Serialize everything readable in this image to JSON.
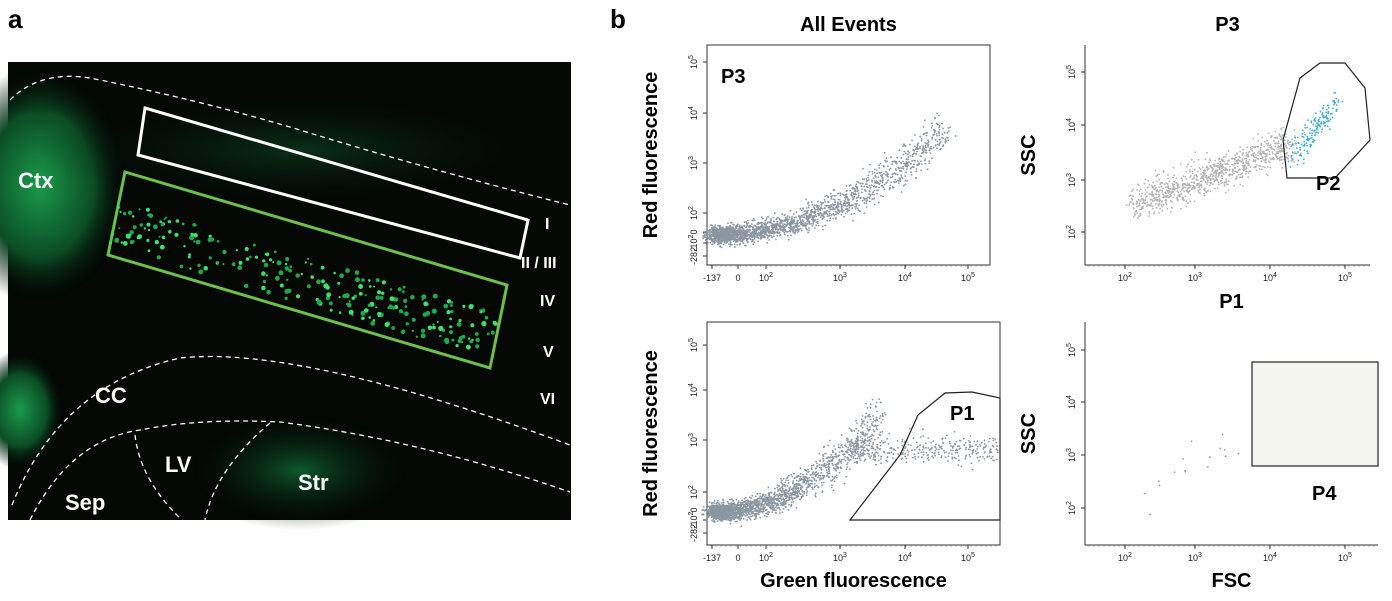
{
  "panels": [
    {
      "label": "a",
      "regions": [
        "Ctx",
        "CC",
        "LV",
        "Str",
        "Sep"
      ],
      "layers": [
        "I",
        "II / III",
        "IV",
        "V",
        "VI"
      ]
    },
    {
      "label": "b",
      "plots": [
        {
          "title": "All Events",
          "y_label": "Red fluorescence",
          "gates": [
            "P3"
          ],
          "y_ticks": [
            {
              "base": "10",
              "exp": "5"
            },
            {
              "base": "10",
              "exp": "4"
            },
            {
              "base": "10",
              "exp": "3"
            },
            {
              "base": "10",
              "exp": "2"
            },
            {
              "base": "0",
              "exp": ""
            },
            {
              "base": "-10",
              "exp": "2"
            },
            {
              "base": "-282",
              "exp": ""
            }
          ],
          "x_ticks": [
            {
              "base": "-137",
              "exp": ""
            },
            {
              "base": "0",
              "exp": ""
            },
            {
              "base": "10",
              "exp": "2"
            },
            {
              "base": "10",
              "exp": "3"
            },
            {
              "base": "10",
              "exp": "4"
            },
            {
              "base": "10",
              "exp": "5"
            }
          ]
        },
        {
          "title": "P3",
          "y_label": "SSC",
          "gates": [
            "P2"
          ],
          "y_ticks": [
            {
              "base": "10",
              "exp": "5"
            },
            {
              "base": "10",
              "exp": "4"
            },
            {
              "base": "10",
              "exp": "3"
            },
            {
              "base": "10",
              "exp": "2"
            }
          ],
          "x_ticks": [
            {
              "base": "10",
              "exp": "2"
            },
            {
              "base": "10",
              "exp": "3"
            },
            {
              "base": "10",
              "exp": "4"
            },
            {
              "base": "10",
              "exp": "5"
            }
          ]
        },
        {
          "y_label": "Red fluorescence",
          "x_label": "Green fluorescence",
          "gates": [
            "P1"
          ],
          "y_ticks": [
            {
              "base": "10",
              "exp": "5"
            },
            {
              "base": "10",
              "exp": "4"
            },
            {
              "base": "10",
              "exp": "3"
            },
            {
              "base": "10",
              "exp": "2"
            },
            {
              "base": "0",
              "exp": ""
            },
            {
              "base": "-10",
              "exp": "2"
            },
            {
              "base": "-282",
              "exp": ""
            }
          ],
          "x_ticks": [
            {
              "base": "-137",
              "exp": ""
            },
            {
              "base": "0",
              "exp": ""
            },
            {
              "base": "10",
              "exp": "2"
            },
            {
              "base": "10",
              "exp": "3"
            },
            {
              "base": "10",
              "exp": "4"
            },
            {
              "base": "10",
              "exp": "5"
            }
          ]
        },
        {
          "title": "P1",
          "y_label": "SSC",
          "x_label": "FSC",
          "gates": [
            "P4"
          ],
          "y_ticks": [
            {
              "base": "10",
              "exp": "5"
            },
            {
              "base": "10",
              "exp": "4"
            },
            {
              "base": "10",
              "exp": "3"
            },
            {
              "base": "10",
              "exp": "2"
            }
          ],
          "x_ticks": [
            {
              "base": "10",
              "exp": "2"
            },
            {
              "base": "10",
              "exp": "3"
            },
            {
              "base": "10",
              "exp": "4"
            },
            {
              "base": "10",
              "exp": "5"
            }
          ]
        }
      ]
    }
  ]
}
